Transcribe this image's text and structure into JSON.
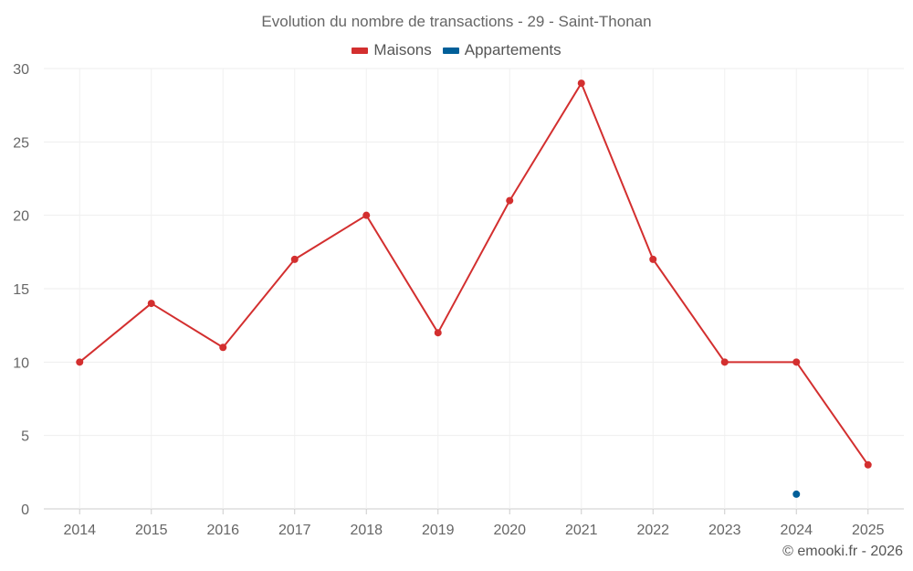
{
  "chart_data": {
    "type": "line",
    "title": "Evolution du nombre de transactions - 29 - Saint-Thonan",
    "xlabel": "",
    "ylabel": "",
    "categories": [
      "2014",
      "2015",
      "2016",
      "2017",
      "2018",
      "2019",
      "2020",
      "2021",
      "2022",
      "2023",
      "2024",
      "2025"
    ],
    "ylim": [
      0,
      30
    ],
    "yticks": [
      0,
      5,
      10,
      15,
      20,
      25,
      30
    ],
    "grid": true,
    "legend_position": "top-center",
    "series": [
      {
        "name": "Maisons",
        "color": "#d32f2f",
        "values": [
          10,
          14,
          11,
          17,
          20,
          12,
          21,
          29,
          17,
          10,
          10,
          3
        ]
      },
      {
        "name": "Appartements",
        "color": "#005f99",
        "values": [
          null,
          null,
          null,
          null,
          null,
          null,
          null,
          null,
          null,
          null,
          1,
          null
        ]
      }
    ]
  },
  "watermark": "© emooki.fr - 2026"
}
